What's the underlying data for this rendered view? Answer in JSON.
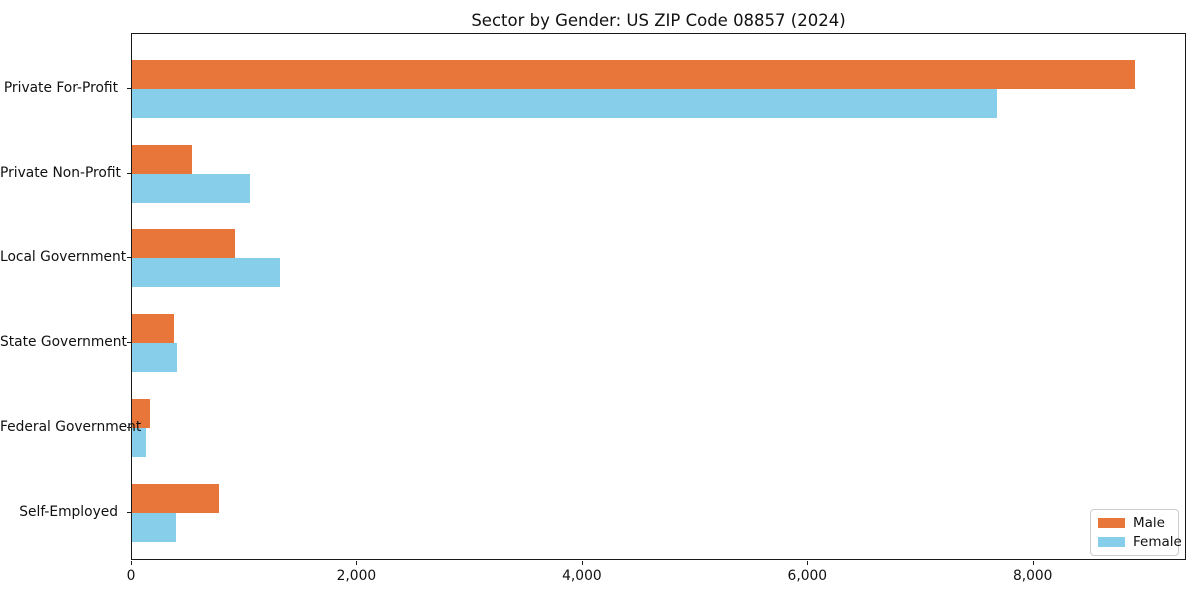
{
  "chart_data": {
    "type": "bar",
    "orientation": "horizontal",
    "title": "Sector by Gender: US ZIP Code 08857 (2024)",
    "xlabel": "",
    "ylabel": "",
    "categories": [
      "Private For-Profit",
      "Private Non-Profit",
      "Local Government",
      "State Government",
      "Federal Government",
      "Self-Employed"
    ],
    "series": [
      {
        "name": "Male",
        "color": "#e8763b",
        "values": [
          8900,
          530,
          910,
          375,
          155,
          770
        ]
      },
      {
        "name": "Female",
        "color": "#87ceeb",
        "values": [
          7670,
          1050,
          1310,
          400,
          120,
          390
        ]
      }
    ],
    "xlim": [
      0,
      9360
    ],
    "xticks": {
      "values": [
        0,
        2000,
        4000,
        6000,
        8000
      ],
      "labels": [
        "0",
        "2,000",
        "4,000",
        "6,000",
        "8,000"
      ]
    },
    "legend": {
      "position": "lower right",
      "entries": [
        "Male",
        "Female"
      ]
    },
    "grid": false,
    "frame": true
  }
}
